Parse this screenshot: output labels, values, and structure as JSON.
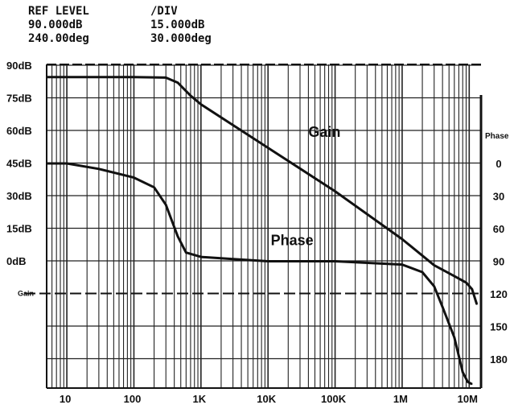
{
  "header": {
    "ref_level_title": "REF LEVEL",
    "div_title": "/DIV",
    "ref_gain": "90.000dB",
    "div_gain": "15.000dB",
    "ref_phase": "240.00deg",
    "div_phase": "30.000deg"
  },
  "chart_data": {
    "type": "line",
    "title": "",
    "xlabel": "",
    "ylabel": "",
    "x_scale": "log",
    "xlim": [
      5,
      15000000
    ],
    "x_ticks": [
      {
        "value": 10,
        "label": "10"
      },
      {
        "value": 100,
        "label": "100"
      },
      {
        "value": 1000,
        "label": "1K"
      },
      {
        "value": 10000,
        "label": "10K"
      },
      {
        "value": 100000,
        "label": "100K"
      },
      {
        "value": 1000000,
        "label": "1M"
      },
      {
        "value": 10000000,
        "label": "10M"
      }
    ],
    "y_left": {
      "ylim": [
        -105,
        90
      ],
      "ticks": [
        {
          "value": 90,
          "label": "90dB"
        },
        {
          "value": 75,
          "label": "75dB"
        },
        {
          "value": 60,
          "label": "60dB"
        },
        {
          "value": 45,
          "label": "45dB"
        },
        {
          "value": 30,
          "label": "30dB"
        },
        {
          "value": 15,
          "label": "15dB"
        },
        {
          "value": 0,
          "label": "0dB"
        }
      ],
      "reference_label": "Gain",
      "reference_value": -15
    },
    "y_right": {
      "title": "Phase",
      "ticks": [
        {
          "value": 0,
          "label": "0"
        },
        {
          "value": 30,
          "label": "30"
        },
        {
          "value": 60,
          "label": "60"
        },
        {
          "value": 90,
          "label": "90"
        },
        {
          "value": 120,
          "label": "120"
        },
        {
          "value": 150,
          "label": "150"
        },
        {
          "value": 180,
          "label": "180"
        }
      ]
    },
    "grid": true,
    "series": [
      {
        "name": "Gain",
        "axis": "left_dB",
        "annotation": {
          "text": "Gain",
          "x": 40000,
          "y": 57
        },
        "points": [
          {
            "x": 5,
            "y": 84.5
          },
          {
            "x": 100,
            "y": 84.5
          },
          {
            "x": 300,
            "y": 84.3
          },
          {
            "x": 450,
            "y": 82
          },
          {
            "x": 700,
            "y": 76
          },
          {
            "x": 1000,
            "y": 72
          },
          {
            "x": 10000,
            "y": 52
          },
          {
            "x": 100000,
            "y": 32
          },
          {
            "x": 1000000,
            "y": 10
          },
          {
            "x": 3000000,
            "y": -2
          },
          {
            "x": 6000000,
            "y": -7
          },
          {
            "x": 9000000,
            "y": -10
          },
          {
            "x": 11000000,
            "y": -13
          },
          {
            "x": 13000000,
            "y": -20
          }
        ]
      },
      {
        "name": "Phase",
        "axis": "right_deg",
        "annotation": {
          "text": "Phase",
          "x": 11000,
          "y": 75
        },
        "points": [
          {
            "x": 5,
            "y": 0
          },
          {
            "x": 10,
            "y": 0
          },
          {
            "x": 30,
            "y": 5
          },
          {
            "x": 100,
            "y": 13
          },
          {
            "x": 200,
            "y": 22
          },
          {
            "x": 300,
            "y": 38
          },
          {
            "x": 450,
            "y": 67
          },
          {
            "x": 600,
            "y": 82
          },
          {
            "x": 1000,
            "y": 86
          },
          {
            "x": 3000,
            "y": 88
          },
          {
            "x": 10000,
            "y": 90
          },
          {
            "x": 100000,
            "y": 90
          },
          {
            "x": 1000000,
            "y": 93
          },
          {
            "x": 2000000,
            "y": 100
          },
          {
            "x": 3000000,
            "y": 113
          },
          {
            "x": 4000000,
            "y": 132
          },
          {
            "x": 6000000,
            "y": 160
          },
          {
            "x": 8000000,
            "y": 192
          },
          {
            "x": 9500000,
            "y": 201
          },
          {
            "x": 11000000,
            "y": 203
          }
        ]
      }
    ]
  }
}
